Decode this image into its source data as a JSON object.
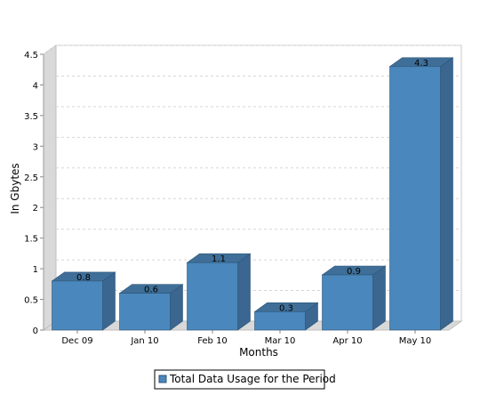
{
  "chart_data": {
    "type": "bar",
    "xlabel": "Months",
    "ylabel": "In Gbytes",
    "ylim": [
      0,
      4.5
    ],
    "yticks": [
      0,
      0.5,
      1,
      1.5,
      2,
      2.5,
      3,
      3.5,
      4,
      4.5
    ],
    "ytick_labels": [
      "0",
      "0.5",
      "1",
      "1.5",
      "2",
      "2.5",
      "3",
      "3.5",
      "4",
      "4.5"
    ],
    "grid": true,
    "three_d": true,
    "legend_position": "bottom-center",
    "categories": [
      "Dec 09",
      "Jan 10",
      "Feb 10",
      "Mar 10",
      "Apr 10",
      "May 10"
    ],
    "series": [
      {
        "name": "Total Data Usage for the Period",
        "values": [
          0.8,
          0.6,
          1.1,
          0.3,
          0.9,
          4.3
        ],
        "data_labels": [
          "0.8",
          "0.6",
          "1.1",
          "0.3",
          "0.9",
          "4.3"
        ],
        "color": "#4a87bc",
        "top_color": "#3f6f98",
        "side_color": "#3a6690"
      }
    ]
  }
}
